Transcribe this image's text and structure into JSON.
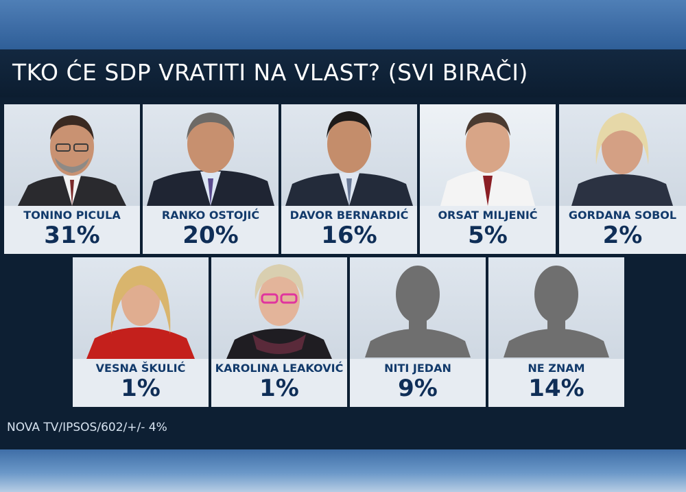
{
  "title": "TKO ĆE SDP VRATITI NA VLAST? (SVI BIRAČI)",
  "source": "NOVA TV/IPSOS/602/+/- 4%",
  "chart_data": {
    "type": "table",
    "categories": [
      "TONINO PICULA",
      "RANKO OSTOJIĆ",
      "DAVOR BERNARDIĆ",
      "ORSAT MILJENIĆ",
      "GORDANA SOBOL",
      "VESNA ŠKULIĆ",
      "KAROLINA LEAKOVIĆ",
      "NITI JEDAN",
      "NE ZNAM"
    ],
    "values": [
      31,
      20,
      16,
      5,
      2,
      1,
      1,
      9,
      14
    ],
    "labels": [
      "31%",
      "20%",
      "16%",
      "5%",
      "2%",
      "1%",
      "1%",
      "9%",
      "14%"
    ]
  },
  "cards": [
    {
      "name": "TONINO PICULA",
      "pct": "31%"
    },
    {
      "name": "RANKO OSTOJIĆ",
      "pct": "20%"
    },
    {
      "name": "DAVOR BERNARDIĆ",
      "pct": "16%"
    },
    {
      "name": "ORSAT MILJENIĆ",
      "pct": "5%"
    },
    {
      "name": "GORDANA SOBOL",
      "pct": "2%"
    },
    {
      "name": "VESNA ŠKULIĆ",
      "pct": "1%"
    },
    {
      "name": "KAROLINA LEAKOVIĆ",
      "pct": "1%"
    },
    {
      "name": "NITI JEDAN",
      "pct": "9%"
    },
    {
      "name": "NE ZNAM",
      "pct": "14%"
    }
  ],
  "colors": {
    "panel": "#0d1f33",
    "card": "#e7ecf2",
    "name_text": "#123a6b",
    "pct_text": "#0f2e57"
  }
}
